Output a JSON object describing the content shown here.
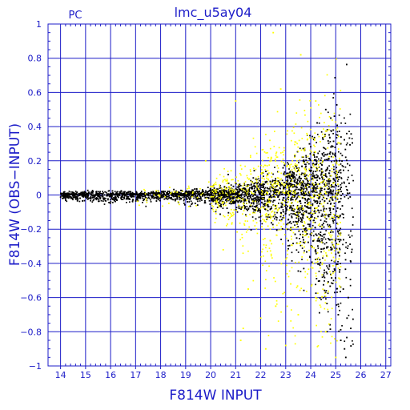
{
  "chart_data": {
    "type": "scatter",
    "title": "lmc_u5ay04",
    "subtitle": "PC",
    "xlabel": "F814W INPUT",
    "ylabel": "F814W (OBS−INPUT)",
    "xlim": [
      13.5,
      27.2
    ],
    "ylim": [
      -1,
      1
    ],
    "xticks": [
      14,
      15,
      16,
      17,
      18,
      19,
      20,
      21,
      22,
      23,
      24,
      25,
      26,
      27
    ],
    "yticks": [
      -1,
      -0.8,
      -0.6,
      -0.4,
      -0.2,
      0,
      0.2,
      0.4,
      0.6,
      0.8,
      1
    ],
    "ytick_labels": [
      "−1",
      "−0.8",
      "−0.6",
      "−0.4",
      "−0.2",
      "0",
      "0.2",
      "0.4",
      "0.6",
      "0.8",
      "1"
    ],
    "grid": true,
    "colors": {
      "axis": "#1c1cc8",
      "black_series": "#000000",
      "yellow_series": "#ffff00"
    },
    "series": [
      {
        "color": "#000000",
        "envelope": [
          {
            "x": 14.0,
            "spread": 0.015
          },
          {
            "x": 15.0,
            "spread": 0.02
          },
          {
            "x": 16.0,
            "spread": 0.025
          },
          {
            "x": 17.0,
            "spread": 0.02
          },
          {
            "x": 18.0,
            "spread": 0.02
          },
          {
            "x": 19.0,
            "spread": 0.025
          },
          {
            "x": 20.0,
            "spread": 0.035
          },
          {
            "x": 21.0,
            "spread": 0.05
          },
          {
            "x": 22.0,
            "spread": 0.08
          },
          {
            "x": 23.0,
            "spread": 0.13
          },
          {
            "x": 23.5,
            "spread": 0.18
          },
          {
            "x": 24.0,
            "spread": 0.25
          },
          {
            "x": 24.5,
            "spread": 0.35
          },
          {
            "x": 25.0,
            "spread": 0.45
          },
          {
            "x": 25.5,
            "spread": 0.6
          }
        ],
        "scatter_points": [
          [
            25.1,
            -0.7
          ],
          [
            25.2,
            -0.85
          ],
          [
            25.3,
            -0.55
          ],
          [
            25.4,
            -0.95
          ],
          [
            25.5,
            -0.6
          ],
          [
            25.6,
            -0.78
          ],
          [
            25.15,
            -0.45
          ],
          [
            25.35,
            -0.9
          ],
          [
            25.45,
            -0.72
          ],
          [
            24.8,
            0.45
          ],
          [
            24.6,
            0.5
          ],
          [
            24.9,
            0.38
          ],
          [
            25.2,
            0.3
          ],
          [
            19.0,
            0.02
          ],
          [
            20.7,
            0.12
          ]
        ]
      },
      {
        "color": "#ffff00",
        "envelope": [
          {
            "x": 17.0,
            "spread": 0.03
          },
          {
            "x": 19.0,
            "spread": 0.05
          },
          {
            "x": 20.0,
            "spread": 0.08
          },
          {
            "x": 21.0,
            "spread": 0.15
          },
          {
            "x": 22.0,
            "spread": 0.25
          },
          {
            "x": 23.0,
            "spread": 0.35
          },
          {
            "x": 24.0,
            "spread": 0.45
          },
          {
            "x": 25.0,
            "spread": 0.55
          }
        ],
        "scatter_points": [
          [
            22.5,
            0.95
          ],
          [
            23.6,
            0.82
          ],
          [
            21.0,
            0.55
          ],
          [
            22.8,
            0.62
          ],
          [
            24.2,
            0.55
          ],
          [
            20.7,
            -0.12
          ],
          [
            21.5,
            -0.55
          ],
          [
            22.0,
            -0.72
          ],
          [
            21.2,
            -0.85
          ],
          [
            22.2,
            -0.9
          ],
          [
            23.0,
            -0.88
          ],
          [
            23.5,
            -0.7
          ],
          [
            24.2,
            -0.6
          ],
          [
            24.6,
            -0.8
          ],
          [
            25.0,
            -0.95
          ],
          [
            21.3,
            -0.78
          ],
          [
            22.6,
            -0.65
          ],
          [
            23.2,
            -0.52
          ],
          [
            20.5,
            -0.32
          ],
          [
            19.8,
            0.2
          ]
        ]
      }
    ]
  }
}
